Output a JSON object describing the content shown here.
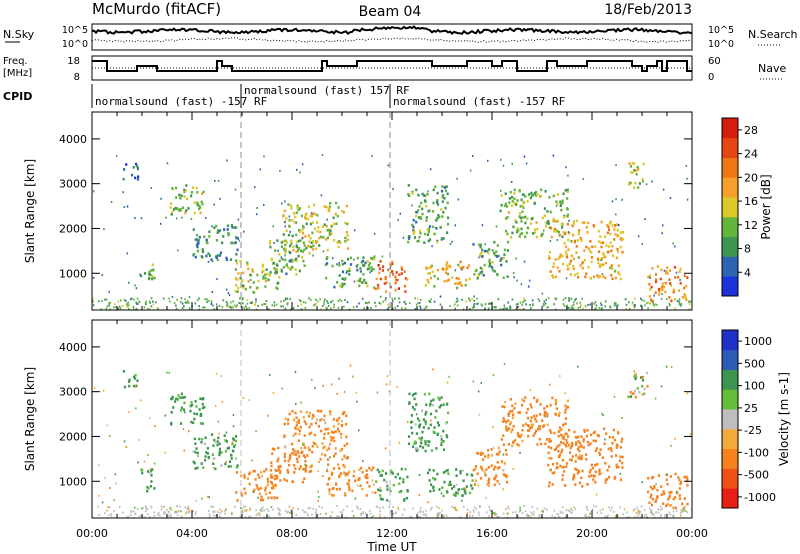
{
  "header": {
    "station": "McMurdo (fitACF)",
    "beam": "Beam 04",
    "date": "18/Feb/2013"
  },
  "noise_panel": {
    "left_label": "N.Sky",
    "right_label": "N.Search",
    "left_ticks": [
      "10^5",
      "10^0"
    ],
    "right_ticks": [
      "10^5",
      "10^0"
    ]
  },
  "freq_panel": {
    "left_label_1": "Freq.",
    "left_label_2": "[MHz]",
    "right_label": "Nave",
    "left_ticks": [
      "18",
      "8"
    ],
    "right_ticks": [
      "60",
      "0"
    ]
  },
  "cpid": {
    "label": "CPID",
    "segments": [
      {
        "text": "normalsound (fast) -157 RF"
      },
      {
        "text": "normalsound (fast) 157 RF"
      },
      {
        "text": "normalsound (fast) -157 RF"
      }
    ]
  },
  "colors": {
    "power": [
      "#1e32dc",
      "#2d64b4",
      "#3c9650",
      "#64b43c",
      "#dcc828",
      "#f5a028",
      "#f07814",
      "#e64614",
      "#d21e0a"
    ],
    "velocity": [
      "#e61e14",
      "#f05014",
      "#f5821e",
      "#f5aa3c",
      "#bebebe",
      "#64be3c",
      "#3c9650",
      "#2d5ab4",
      "#1e32c8"
    ]
  },
  "chart_data": [
    {
      "type": "heatmap",
      "title": "",
      "xlabel": "",
      "ylabel": "Slant Range [km]",
      "x_ticks": [
        "00:00",
        "04:00",
        "08:00",
        "12:00",
        "16:00",
        "20:00",
        "00:00"
      ],
      "y_ticks": [
        "1000",
        "2000",
        "3000",
        "4000"
      ],
      "xlim_hours": [
        0,
        24
      ],
      "ylim_km": [
        180,
        4600
      ],
      "colorbar_label": "Power [dB]",
      "colorbar_ticks": [
        "4",
        "8",
        "12",
        "16",
        "20",
        "24",
        "28"
      ],
      "colorbar_range": [
        0,
        30
      ],
      "regions": [
        {
          "t0": 1.2,
          "t1": 1.8,
          "r0": 3100,
          "r1": 3500,
          "v": 6
        },
        {
          "t0": 1.9,
          "t1": 2.5,
          "r0": 800,
          "r1": 1300,
          "v": 12
        },
        {
          "t0": 3.1,
          "t1": 4.5,
          "r0": 2300,
          "r1": 3000,
          "v": 12
        },
        {
          "t0": 4.0,
          "t1": 5.8,
          "r0": 1300,
          "r1": 2100,
          "v": 8
        },
        {
          "t0": 5.7,
          "t1": 7.5,
          "r0": 600,
          "r1": 1300,
          "v": 14
        },
        {
          "t0": 7.0,
          "t1": 8.8,
          "r0": 1000,
          "r1": 1800,
          "v": 11
        },
        {
          "t0": 7.6,
          "t1": 10.2,
          "r0": 1500,
          "r1": 2600,
          "v": 14
        },
        {
          "t0": 9.3,
          "t1": 11.3,
          "r0": 700,
          "r1": 1400,
          "v": 10
        },
        {
          "t0": 11.3,
          "t1": 12.6,
          "r0": 600,
          "r1": 1300,
          "v": 22
        },
        {
          "t0": 12.6,
          "t1": 14.2,
          "r0": 1700,
          "r1": 3000,
          "v": 10
        },
        {
          "t0": 13.3,
          "t1": 15.2,
          "r0": 700,
          "r1": 1300,
          "v": 16
        },
        {
          "t0": 15.2,
          "t1": 16.6,
          "r0": 900,
          "r1": 1800,
          "v": 10
        },
        {
          "t0": 16.3,
          "t1": 19.0,
          "r0": 1800,
          "r1": 2900,
          "v": 12
        },
        {
          "t0": 18.2,
          "t1": 21.2,
          "r0": 900,
          "r1": 2200,
          "v": 18
        },
        {
          "t0": 21.4,
          "t1": 22.2,
          "r0": 2900,
          "r1": 3500,
          "v": 14
        },
        {
          "t0": 22.2,
          "t1": 23.8,
          "r0": 400,
          "r1": 1200,
          "v": 20
        }
      ]
    },
    {
      "type": "heatmap",
      "title": "",
      "xlabel": "Time UT",
      "ylabel": "Slant Range [km]",
      "x_ticks": [
        "00:00",
        "04:00",
        "08:00",
        "12:00",
        "16:00",
        "20:00",
        "00:00"
      ],
      "y_ticks": [
        "1000",
        "2000",
        "3000",
        "4000"
      ],
      "xlim_hours": [
        0,
        24
      ],
      "ylim_km": [
        180,
        4600
      ],
      "colorbar_label": "Velocity [m s-1]",
      "colorbar_ticks": [
        "1000",
        "500",
        "100",
        "25",
        "-25",
        "-100",
        "-500",
        "-1000"
      ],
      "regions": [
        {
          "t0": 1.2,
          "t1": 1.8,
          "r0": 3100,
          "r1": 3500,
          "v": 200
        },
        {
          "t0": 1.9,
          "t1": 2.5,
          "r0": 800,
          "r1": 1300,
          "v": 150
        },
        {
          "t0": 3.1,
          "t1": 4.5,
          "r0": 2300,
          "r1": 3000,
          "v": 200
        },
        {
          "t0": 4.0,
          "t1": 5.8,
          "r0": 1300,
          "r1": 2100,
          "v": 150
        },
        {
          "t0": 5.7,
          "t1": 7.5,
          "r0": 600,
          "r1": 1300,
          "v": -200
        },
        {
          "t0": 7.0,
          "t1": 8.8,
          "r0": 1000,
          "r1": 1800,
          "v": -250
        },
        {
          "t0": 7.6,
          "t1": 10.2,
          "r0": 1500,
          "r1": 2600,
          "v": -150
        },
        {
          "t0": 9.3,
          "t1": 11.3,
          "r0": 700,
          "r1": 1400,
          "v": -200
        },
        {
          "t0": 11.3,
          "t1": 12.6,
          "r0": 600,
          "r1": 1300,
          "v": 150
        },
        {
          "t0": 12.6,
          "t1": 14.2,
          "r0": 1700,
          "r1": 3000,
          "v": 150
        },
        {
          "t0": 13.3,
          "t1": 15.2,
          "r0": 700,
          "r1": 1300,
          "v": 200
        },
        {
          "t0": 15.2,
          "t1": 16.6,
          "r0": 900,
          "r1": 1800,
          "v": -150
        },
        {
          "t0": 16.3,
          "t1": 19.0,
          "r0": 1800,
          "r1": 2900,
          "v": -200
        },
        {
          "t0": 18.2,
          "t1": 21.2,
          "r0": 900,
          "r1": 2200,
          "v": -250
        },
        {
          "t0": 21.4,
          "t1": 22.2,
          "r0": 2900,
          "r1": 3500,
          "v": 0
        },
        {
          "t0": 22.2,
          "t1": 23.8,
          "r0": 400,
          "r1": 1200,
          "v": -300
        }
      ]
    }
  ]
}
